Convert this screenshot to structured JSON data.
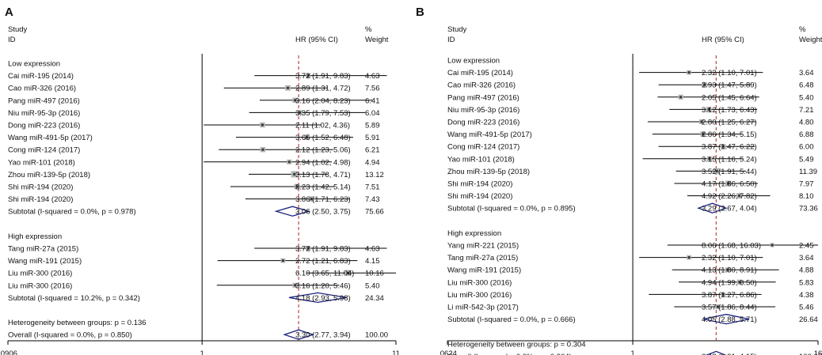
{
  "chart_data": [
    {
      "type": "forest",
      "panel_label": "A",
      "xscale": "log",
      "xlim": [
        0.0906,
        11
      ],
      "ticks": [
        ".0906",
        "1",
        "11"
      ],
      "tick_values": [
        0.0906,
        1,
        11
      ],
      "overall_value": 3.3,
      "headers": {
        "study": "Study",
        "id": "ID",
        "hr": "HR (95% CI)",
        "pct": "%",
        "weight": "Weight"
      },
      "groups": [
        {
          "title": "Low expression",
          "studies": [
            {
              "label": "Cai miR-195 (2014)",
              "hr": 3.72,
              "lo": 1.91,
              "hi": 9.83,
              "ci_text": "3.72 (1.91, 9.83)",
              "weight": "4.63"
            },
            {
              "label": "Cao miR-326 (2016)",
              "hr": 2.89,
              "lo": 1.31,
              "hi": 4.72,
              "ci_text": "2.89 (1.31, 4.72)",
              "weight": "7.56"
            },
            {
              "label": "Pang miR-497 (2016)",
              "hr": 3.16,
              "lo": 2.04,
              "hi": 8.23,
              "ci_text": "3.16 (2.04, 8.23)",
              "weight": "6.41"
            },
            {
              "label": "Niu miR-95-3p (2016)",
              "hr": 3.35,
              "lo": 1.79,
              "hi": 7.53,
              "ci_text": "3.35 (1.79, 7.53)",
              "weight": "6.04"
            },
            {
              "label": "Dong miR-223 (2016)",
              "hr": 2.11,
              "lo": 1.02,
              "hi": 4.36,
              "ci_text": "2.11 (1.02, 4.36)",
              "weight": "5.89"
            },
            {
              "label": "Wang miR-491-5p (2017)",
              "hr": 3.65,
              "lo": 1.52,
              "hi": 6.48,
              "ci_text": "3.65 (1.52, 6.48)",
              "weight": "5.91"
            },
            {
              "label": "Cong miR-124 (2017)",
              "hr": 2.12,
              "lo": 1.23,
              "hi": 5.06,
              "ci_text": "2.12 (1.23, 5.06)",
              "weight": "6.21"
            },
            {
              "label": "Yao miR-101 (2018)",
              "hr": 2.94,
              "lo": 1.02,
              "hi": 4.98,
              "ci_text": "2.94 (1.02, 4.98)",
              "weight": "4.94"
            },
            {
              "label": "Zhou miR-139-5p (2018)",
              "hr": 3.13,
              "lo": 1.78,
              "hi": 4.71,
              "ci_text": "3.13 (1.78, 4.71)",
              "weight": "13.12"
            },
            {
              "label": "Shi miR-194 (2020)",
              "hr": 3.23,
              "lo": 1.42,
              "hi": 5.14,
              "ci_text": "3.23 (1.42, 5.14)",
              "weight": "7.51"
            },
            {
              "label": "Shi miR-194 (2020)",
              "hr": 3.86,
              "lo": 1.71,
              "hi": 6.23,
              "ci_text": "3.86 (1.71, 6.23)",
              "weight": "7.43"
            }
          ],
          "subtotal": {
            "label": "Subtotal  (I-squared = 0.0%, p = 0.978)",
            "hr": 3.06,
            "lo": 2.5,
            "hi": 3.75,
            "ci_text": "3.06 (2.50, 3.75)",
            "weight": "75.66"
          }
        },
        {
          "title": "High expression",
          "studies": [
            {
              "label": "Tang miR-27a (2015)",
              "hr": 3.72,
              "lo": 1.91,
              "hi": 9.83,
              "ci_text": "3.72 (1.91, 9.83)",
              "weight": "4.63"
            },
            {
              "label": "Wang miR-191 (2015)",
              "hr": 2.72,
              "lo": 1.21,
              "hi": 6.83,
              "ci_text": "2.72 (1.21, 6.83)",
              "weight": "4.15"
            },
            {
              "label": "Liu miR-300 (2016)",
              "hr": 6.1,
              "lo": 3.65,
              "hi": 11.04,
              "ci_text": "6.10 (3.65, 11.04)",
              "weight": "10.16"
            },
            {
              "label": "Liu miR-300 (2016)",
              "hr": 3.16,
              "lo": 1.2,
              "hi": 5.46,
              "ci_text": "3.16 (1.20, 5.46)",
              "weight": "5.40"
            }
          ],
          "subtotal": {
            "label": "Subtotal  (I-squared = 10.2%, p = 0.342)",
            "hr": 4.18,
            "lo": 2.93,
            "hi": 5.98,
            "ci_text": "4.18 (2.93, 5.98)",
            "weight": "24.34"
          }
        }
      ],
      "heterogeneity": "Heterogeneity between groups: p = 0.136",
      "overall": {
        "label": "Overall  (I-squared = 0.0%, p = 0.850)",
        "hr": 3.3,
        "lo": 2.77,
        "hi": 3.94,
        "ci_text": "3.30 (2.77, 3.94)",
        "weight": "100.00"
      }
    },
    {
      "type": "forest",
      "panel_label": "B",
      "xscale": "log",
      "xlim": [
        0.0624,
        16
      ],
      "ticks": [
        ".0624",
        "1",
        "16"
      ],
      "tick_values": [
        0.0624,
        1,
        16
      ],
      "overall_value": 3.48,
      "headers": {
        "study": "Study",
        "id": "ID",
        "hr": "HR (95% CI)",
        "pct": "%",
        "weight": "Weight"
      },
      "groups": [
        {
          "title": "Low expression",
          "studies": [
            {
              "label": "Cai miR-195 (2014)",
              "hr": 2.32,
              "lo": 1.1,
              "hi": 7.01,
              "ci_text": "2.32 (1.10, 7.01)",
              "weight": "3.64"
            },
            {
              "label": "Cao miR-326 (2016)",
              "hr": 2.93,
              "lo": 1.47,
              "hi": 5.89,
              "ci_text": "2.93 (1.47, 5.89)",
              "weight": "6.48"
            },
            {
              "label": "Pang miR-497 (2016)",
              "hr": 2.05,
              "lo": 1.45,
              "hi": 6.64,
              "ci_text": "2.05 (1.45, 6.64)",
              "weight": "5.40"
            },
            {
              "label": "Niu miR-95-3p (2016)",
              "hr": 3.12,
              "lo": 1.73,
              "hi": 6.43,
              "ci_text": "3.12 (1.73, 6.43)",
              "weight": "7.21"
            },
            {
              "label": "Dong miR-223 (2016)",
              "hr": 2.8,
              "lo": 1.25,
              "hi": 6.27,
              "ci_text": "2.80 (1.25, 6.27)",
              "weight": "4.80"
            },
            {
              "label": "Wang miR-491-5p (2017)",
              "hr": 2.86,
              "lo": 1.34,
              "hi": 5.15,
              "ci_text": "2.86 (1.34, 5.15)",
              "weight": "6.88"
            },
            {
              "label": "Cong miR-124 (2017)",
              "hr": 3.87,
              "lo": 1.47,
              "hi": 6.22,
              "ci_text": "3.87 (1.47, 6.22)",
              "weight": "6.00"
            },
            {
              "label": "Yao miR-101 (2018)",
              "hr": 3.15,
              "lo": 1.16,
              "hi": 5.24,
              "ci_text": "3.15 (1.16, 5.24)",
              "weight": "5.49"
            },
            {
              "label": "Zhou miR-139-5p (2018)",
              "hr": 3.52,
              "lo": 1.91,
              "hi": 5.44,
              "ci_text": "3.52 (1.91, 5.44)",
              "weight": "11.39"
            },
            {
              "label": "Shi miR-194 (2020)",
              "hr": 4.17,
              "lo": 1.86,
              "hi": 6.5,
              "ci_text": "4.17 (1.86, 6.50)",
              "weight": "7.97"
            },
            {
              "label": "Shi miR-194 (2020)",
              "hr": 4.92,
              "lo": 2.26,
              "hi": 7.82,
              "ci_text": "4.92 (2.26, 7.82)",
              "weight": "8.10"
            }
          ],
          "subtotal": {
            "label": "Subtotal  (I-squared = 0.0%, p = 0.895)",
            "hr": 3.29,
            "lo": 2.67,
            "hi": 4.04,
            "ci_text": "3.29 (2.67, 4.04)",
            "weight": "73.36"
          }
        },
        {
          "title": "High expression",
          "studies": [
            {
              "label": "Yang miR-221 (2015)",
              "hr": 8.06,
              "lo": 1.68,
              "hi": 16.03,
              "ci_text": "8.06 (1.68, 16.03)",
              "weight": "2.45"
            },
            {
              "label": "Tang miR-27a (2015)",
              "hr": 2.32,
              "lo": 1.1,
              "hi": 7.01,
              "ci_text": "2.32 (1.10, 7.01)",
              "weight": "3.64"
            },
            {
              "label": "Wang miR-191 (2015)",
              "hr": 4.13,
              "lo": 1.8,
              "hi": 8.91,
              "ci_text": "4.13 (1.80, 8.91)",
              "weight": "4.88"
            },
            {
              "label": "Liu miR-300 (2016)",
              "hr": 4.94,
              "lo": 1.99,
              "hi": 8.5,
              "ci_text": "4.94 (1.99, 8.50)",
              "weight": "5.83"
            },
            {
              "label": "Liu miR-300 (2016)",
              "hr": 3.87,
              "lo": 1.27,
              "hi": 6.86,
              "ci_text": "3.87 (1.27, 6.86)",
              "weight": "4.38"
            },
            {
              "label": "Li miR-542-3p (2017)",
              "hr": 3.57,
              "lo": 1.86,
              "hi": 8.44,
              "ci_text": "3.57 (1.86, 8.44)",
              "weight": "5.46"
            }
          ],
          "subtotal": {
            "label": "Subtotal  (I-squared = 0.0%, p = 0.666)",
            "hr": 4.05,
            "lo": 2.88,
            "hi": 5.71,
            "ci_text": "4.05 (2.88, 5.71)",
            "weight": "26.64"
          }
        }
      ],
      "heterogeneity": "Heterogeneity between groups: p = 0.304",
      "overall": {
        "label": "Overall  (I-squared = 0.0%, p = 0.904)",
        "hr": 3.48,
        "lo": 2.91,
        "hi": 4.15,
        "ci_text": "3.48 (2.91, 4.15)",
        "weight": "100.00"
      }
    }
  ],
  "colors": {
    "text": "#111111",
    "line": "#000000",
    "box": "#b5b5b5",
    "diamond": "#1a237e",
    "ref_line": "#b22222"
  }
}
